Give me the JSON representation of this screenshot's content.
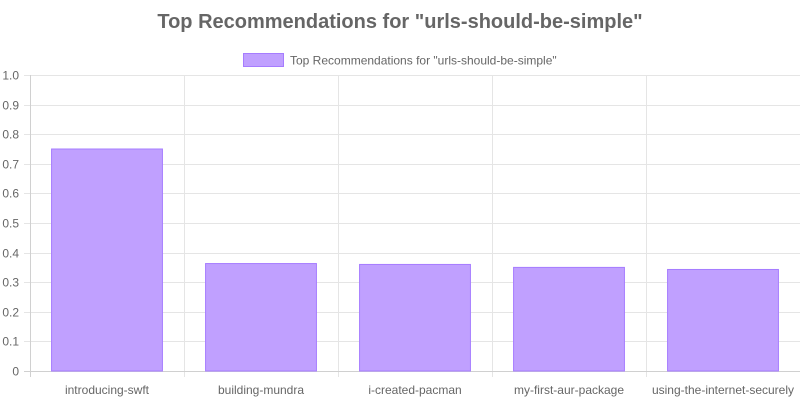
{
  "colors": {
    "bar_fill": "#c0a0ff",
    "bar_stroke": "#a67cff",
    "grid": "#e5e5e5",
    "text": "#666666",
    "title": "#666666"
  },
  "chart_data": {
    "type": "bar",
    "title": "Top Recommendations for \"urls-should-be-simple\"",
    "categories": [
      "introducing-swft",
      "building-mundra",
      "i-created-pacman",
      "my-first-aur-package",
      "using-the-internet-securely"
    ],
    "series": [
      {
        "name": "Top Recommendations for \"urls-should-be-simple\"",
        "values": [
          0.75,
          0.363,
          0.36,
          0.35,
          0.343
        ]
      }
    ],
    "xlabel": "",
    "ylabel": "",
    "ylim": [
      0,
      1.0
    ],
    "yticks": [
      "0",
      "0.1",
      "0.2",
      "0.3",
      "0.4",
      "0.5",
      "0.6",
      "0.7",
      "0.8",
      "0.9",
      "1.0"
    ],
    "grid": true,
    "legend": "top-center"
  }
}
